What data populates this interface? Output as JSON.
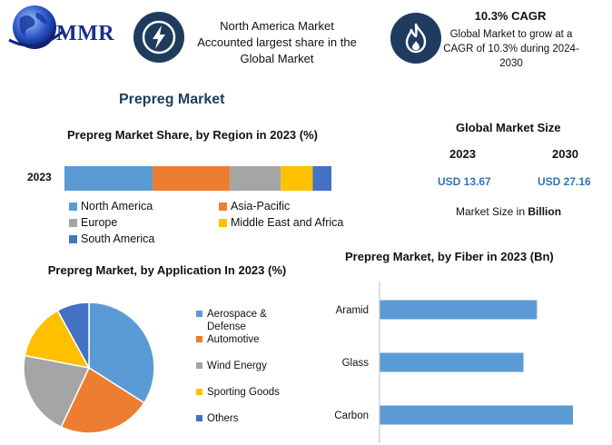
{
  "header": {
    "logo_text": "MMR",
    "highlight_na": "North America Market Accounted largest share in the Global Market",
    "cagr_title": "10.3% CAGR",
    "cagr_text": "Global Market to grow at a CAGR of 10.3% during 2024-2030"
  },
  "main_title": "Prepreg Market",
  "market_size": {
    "title": "Global Market Size",
    "year1": "2023",
    "year2": "2030",
    "value1": "USD 13.67",
    "value2": "USD 27.16",
    "note_prefix": "Market Size in ",
    "note_unit": "Billion"
  },
  "colors": {
    "north_america": "#5b9bd5",
    "asia_pacific": "#ed7d31",
    "europe": "#a5a5a5",
    "middle_east_africa": "#ffc000",
    "south_america": "#4472c4",
    "fiber_bar": "#5b9bd5",
    "circle": "#1f3c5f"
  },
  "icons": [
    "lightning-bolt-icon",
    "flame-icon",
    "globe-logo"
  ],
  "chart_data": [
    {
      "type": "bar",
      "orientation": "horizontal-stacked",
      "title": "Prepreg Market Share, by Region in 2023 (%)",
      "categories": [
        "2023"
      ],
      "series": [
        {
          "name": "North America",
          "values": [
            33
          ]
        },
        {
          "name": "Asia-Pacific",
          "values": [
            29
          ]
        },
        {
          "name": "Europe",
          "values": [
            19
          ]
        },
        {
          "name": "Middle East and Africa",
          "values": [
            12
          ]
        },
        {
          "name": "South America",
          "values": [
            7
          ]
        }
      ],
      "legend": "bottom"
    },
    {
      "type": "pie",
      "title": "Prepreg Market, by Application In 2023 (%)",
      "labels": [
        "Aerospace & Defense",
        "Automotive",
        "Wind Energy",
        "Sporting Goods",
        "Others"
      ],
      "values": [
        34,
        23,
        21,
        14,
        8
      ],
      "colors": [
        "#5b9bd5",
        "#ed7d31",
        "#a5a5a5",
        "#ffc000",
        "#4472c4"
      ],
      "legend": "right"
    },
    {
      "type": "bar",
      "orientation": "horizontal",
      "title": "Prepreg Market, by Fiber in 2023 (Bn)",
      "categories": [
        "Aramid",
        "Glass",
        "Carbon"
      ],
      "values": [
        3.5,
        3.2,
        4.3
      ],
      "xlim": [
        0,
        4.3
      ]
    }
  ]
}
